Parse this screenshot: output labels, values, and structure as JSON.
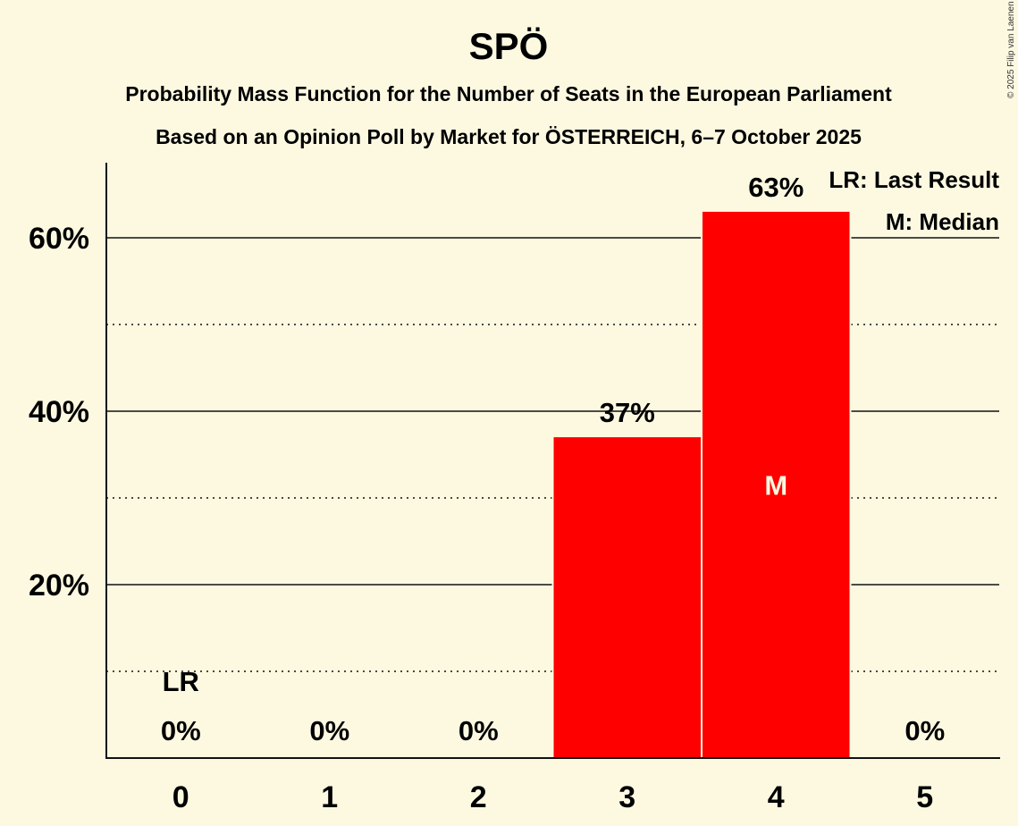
{
  "chart_data": {
    "type": "bar",
    "title": "SPÖ",
    "subtitle_lines": [
      "Probability Mass Function for the Number of Seats in the European Parliament",
      "Based on an Opinion Poll by Market for ÖSTERREICH, 6–7 October 2025"
    ],
    "xlabel": "",
    "ylabel": "",
    "categories": [
      "0",
      "1",
      "2",
      "3",
      "4",
      "5"
    ],
    "values": [
      0,
      0,
      0,
      37,
      63,
      0
    ],
    "value_labels": [
      "0%",
      "0%",
      "0%",
      "37%",
      "63%",
      "0%"
    ],
    "ylim": [
      0,
      68
    ],
    "yticks_major": [
      20,
      40,
      60
    ],
    "ytick_labels": [
      "20%",
      "40%",
      "60%"
    ],
    "yticks_minor": [
      10,
      30,
      50
    ],
    "grid": true,
    "bar_color": "#ff0000",
    "last_result_category": "0",
    "last_result_marker": "LR",
    "median_category": "4",
    "median_marker": "M",
    "legend": {
      "placement": "top-right",
      "entries": [
        "LR: Last Result",
        "M: Median"
      ]
    }
  },
  "copyright": "© 2025 Filip van Laenen"
}
